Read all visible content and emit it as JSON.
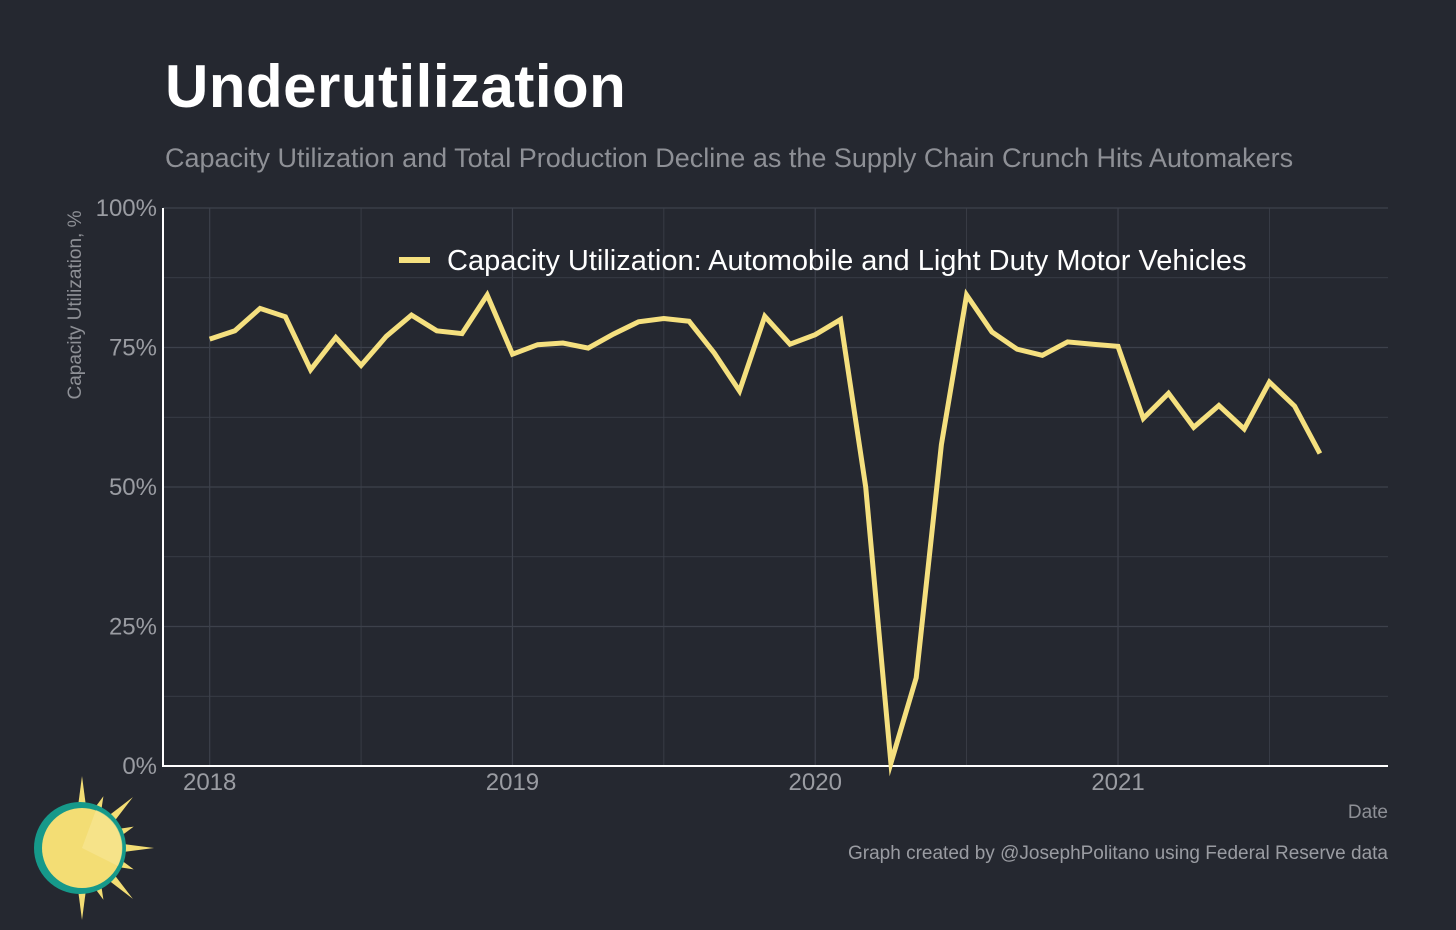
{
  "title": "Underutilization",
  "subtitle": "Capacity Utilization and Total Production Decline as the Supply Chain Crunch Hits Automakers",
  "credit": "Graph created by @JosephPolitano using Federal Reserve data",
  "logo": {
    "icon": "sun-icon"
  },
  "colors": {
    "background": "#252830",
    "line": "#f5e07f",
    "grid": "#3d414b",
    "axis": "#ffffff",
    "logo_ring": "#16998a",
    "logo_sun": "#f3dd74"
  },
  "chart_data": {
    "type": "line",
    "title": "Underutilization",
    "subtitle": "Capacity Utilization and Total Production Decline as the Supply Chain Crunch Hits Automakers",
    "xlabel": "Date",
    "ylabel": "Capacity Utilization, %",
    "ylim": [
      0,
      100
    ],
    "yticks": [
      "0%",
      "25%",
      "50%",
      "75%",
      "100%"
    ],
    "xticks": [
      "2018",
      "2019",
      "2020",
      "2021"
    ],
    "xlim": [
      "2017-11",
      "2021-12"
    ],
    "grid": true,
    "legend_position": "top",
    "series": [
      {
        "name": "Capacity Utilization: Automobile and Light Duty Motor Vehicles",
        "x": [
          "2018-01",
          "2018-02",
          "2018-03",
          "2018-04",
          "2018-05",
          "2018-06",
          "2018-07",
          "2018-08",
          "2018-09",
          "2018-10",
          "2018-11",
          "2018-12",
          "2019-01",
          "2019-02",
          "2019-03",
          "2019-04",
          "2019-05",
          "2019-06",
          "2019-07",
          "2019-08",
          "2019-09",
          "2019-10",
          "2019-11",
          "2019-12",
          "2020-01",
          "2020-02",
          "2020-03",
          "2020-04",
          "2020-05",
          "2020-06",
          "2020-07",
          "2020-08",
          "2020-09",
          "2020-10",
          "2020-11",
          "2020-12",
          "2021-01",
          "2021-02",
          "2021-03",
          "2021-04",
          "2021-05",
          "2021-06",
          "2021-07",
          "2021-08",
          "2021-09"
        ],
        "values": [
          76.5,
          78.0,
          82.0,
          80.5,
          71.0,
          76.8,
          71.8,
          77.0,
          80.8,
          78.0,
          77.5,
          84.4,
          73.8,
          75.5,
          75.8,
          74.9,
          77.4,
          79.6,
          80.2,
          79.7,
          74.0,
          67.2,
          80.6,
          75.6,
          77.3,
          80.0,
          50.0,
          0.5,
          15.8,
          57.6,
          84.4,
          77.8,
          74.7,
          73.6,
          76.0,
          75.6,
          75.2,
          62.3,
          66.8,
          60.7,
          64.6,
          60.4,
          68.8,
          64.5,
          56.0
        ]
      }
    ]
  }
}
